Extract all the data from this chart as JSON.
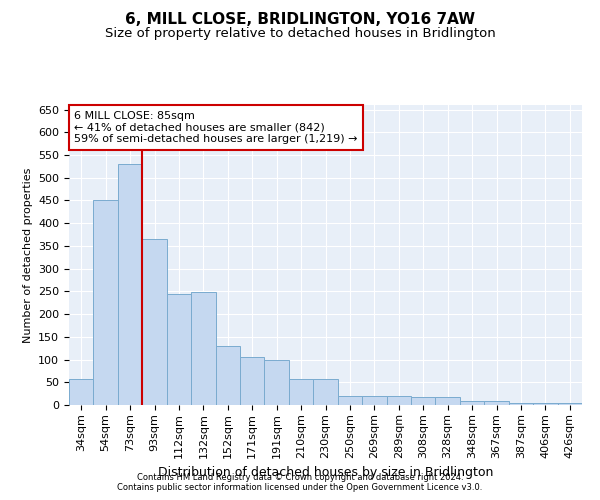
{
  "title": "6, MILL CLOSE, BRIDLINGTON, YO16 7AW",
  "subtitle": "Size of property relative to detached houses in Bridlington",
  "xlabel": "Distribution of detached houses by size in Bridlington",
  "ylabel": "Number of detached properties",
  "footnote1": "Contains HM Land Registry data © Crown copyright and database right 2024.",
  "footnote2": "Contains public sector information licensed under the Open Government Licence v3.0.",
  "annotation_line1": "6 MILL CLOSE: 85sqm",
  "annotation_line2": "← 41% of detached houses are smaller (842)",
  "annotation_line3": "59% of semi-detached houses are larger (1,219) →",
  "categories": [
    "34sqm",
    "54sqm",
    "73sqm",
    "93sqm",
    "112sqm",
    "132sqm",
    "152sqm",
    "171sqm",
    "191sqm",
    "210sqm",
    "230sqm",
    "250sqm",
    "269sqm",
    "289sqm",
    "308sqm",
    "328sqm",
    "348sqm",
    "367sqm",
    "387sqm",
    "406sqm",
    "426sqm"
  ],
  "values": [
    58,
    452,
    530,
    365,
    245,
    248,
    130,
    105,
    100,
    58,
    58,
    20,
    20,
    20,
    18,
    18,
    8,
    8,
    5,
    5,
    5
  ],
  "bar_color": "#c5d8f0",
  "bar_edge_color": "#7aabcf",
  "vline_x": 2.5,
  "vline_color": "#cc0000",
  "ylim": [
    0,
    660
  ],
  "yticks": [
    0,
    50,
    100,
    150,
    200,
    250,
    300,
    350,
    400,
    450,
    500,
    550,
    600,
    650
  ],
  "bg_color": "#e8eff8",
  "title_fontsize": 11,
  "subtitle_fontsize": 9.5,
  "ylabel_fontsize": 8,
  "xlabel_fontsize": 9,
  "tick_fontsize": 8,
  "annotation_fontsize": 8,
  "footnote_fontsize": 6,
  "annotation_box_facecolor": "white",
  "annotation_box_edgecolor": "#cc0000"
}
